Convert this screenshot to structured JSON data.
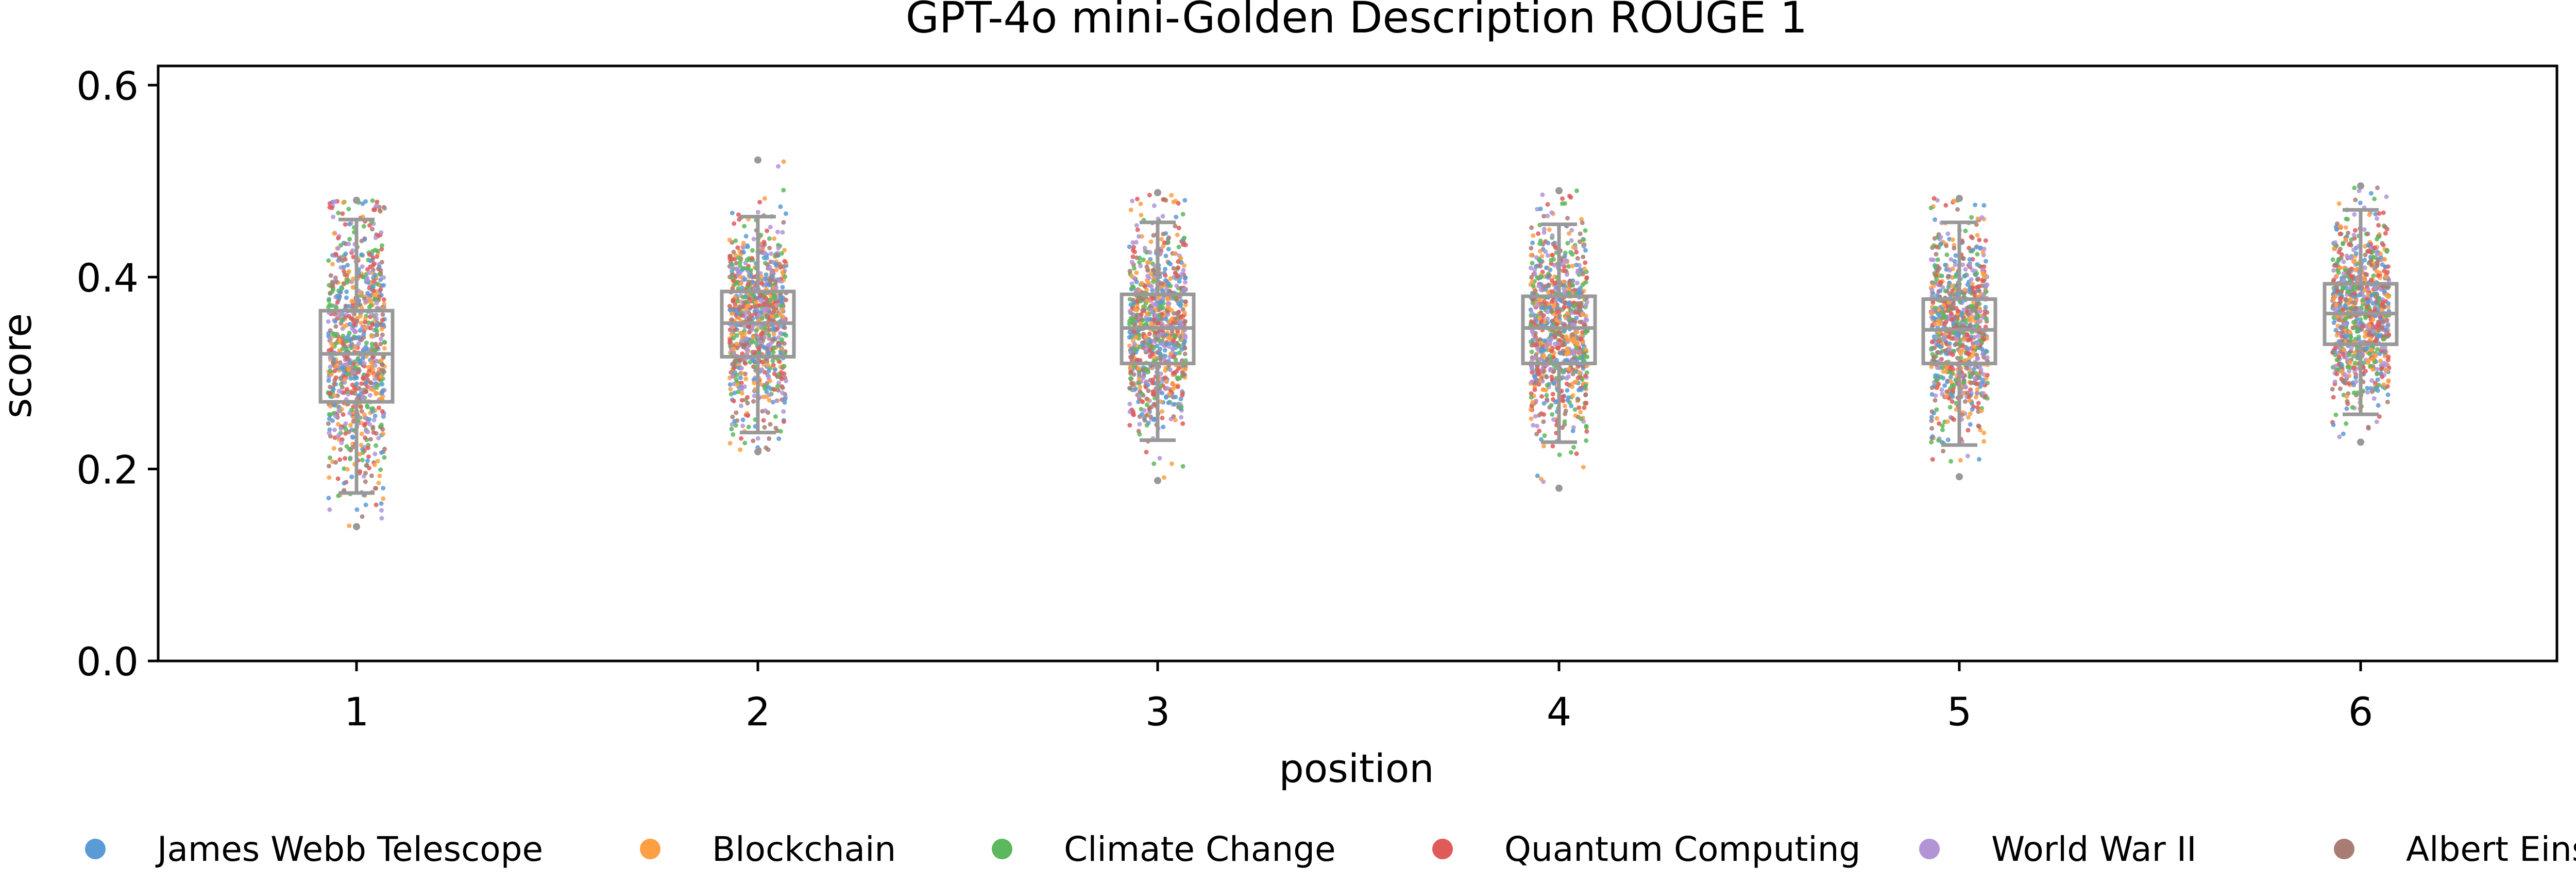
{
  "chart_data": {
    "type": "box-strip",
    "title": "GPT-4o mini-Golden Description ROUGE 1",
    "xlabel": "position",
    "ylabel": "score",
    "categories": [
      "1",
      "2",
      "3",
      "4",
      "5",
      "6"
    ],
    "ylim": [
      0.0,
      0.62
    ],
    "yticks": [
      "0.0",
      "0.2",
      "0.4",
      "0.6"
    ],
    "grid": false,
    "legend_position": "bottom",
    "series": [
      {
        "name": "James Webb Telescope",
        "color": "#5b9bd5"
      },
      {
        "name": "Blockchain",
        "color": "#ff9f43"
      },
      {
        "name": "Climate Change",
        "color": "#5cb85c"
      },
      {
        "name": "Quantum Computing",
        "color": "#e05a5a"
      },
      {
        "name": "World War II",
        "color": "#b294d6"
      },
      {
        "name": "Albert Einstein",
        "color": "#a97c74"
      }
    ],
    "boxes": [
      {
        "position": "1",
        "q1": 0.27,
        "median": 0.32,
        "q3": 0.365,
        "whisker_low": 0.175,
        "whisker_high": 0.46,
        "min": 0.14,
        "max": 0.48
      },
      {
        "position": "2",
        "q1": 0.317,
        "median": 0.352,
        "q3": 0.385,
        "whisker_low": 0.238,
        "whisker_high": 0.463,
        "min": 0.218,
        "max": 0.522
      },
      {
        "position": "3",
        "q1": 0.31,
        "median": 0.347,
        "q3": 0.382,
        "whisker_low": 0.23,
        "whisker_high": 0.457,
        "min": 0.188,
        "max": 0.488
      },
      {
        "position": "4",
        "q1": 0.31,
        "median": 0.347,
        "q3": 0.38,
        "whisker_low": 0.228,
        "whisker_high": 0.455,
        "min": 0.18,
        "max": 0.49
      },
      {
        "position": "5",
        "q1": 0.31,
        "median": 0.345,
        "q3": 0.377,
        "whisker_low": 0.225,
        "whisker_high": 0.457,
        "min": 0.192,
        "max": 0.482
      },
      {
        "position": "6",
        "q1": 0.33,
        "median": 0.362,
        "q3": 0.393,
        "whisker_low": 0.257,
        "whisker_high": 0.47,
        "min": 0.228,
        "max": 0.495
      }
    ]
  }
}
